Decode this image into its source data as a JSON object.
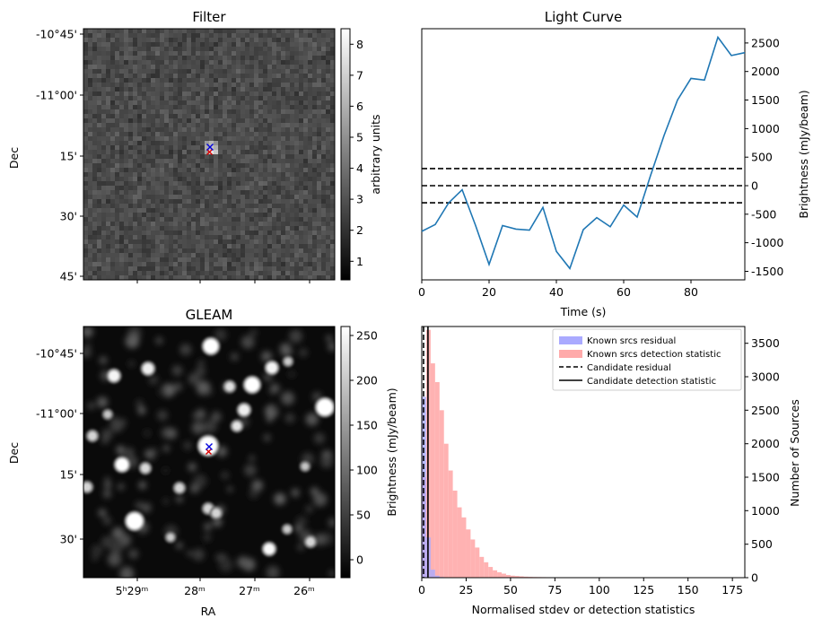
{
  "chart_data": [
    {
      "type": "heatmap",
      "title": "Filter",
      "xlabel": "",
      "ylabel": "Dec",
      "ytick_labels": [
        "-10°45'",
        "-11°00'",
        "15'",
        "30'",
        "45'"
      ],
      "colorbar": {
        "label": "arbitrary units",
        "range": [
          0.4,
          8.5
        ],
        "ticks": [
          1,
          2,
          3,
          4,
          5,
          6,
          7,
          8
        ],
        "colormap": "gray"
      },
      "markers": {
        "blue": "x",
        "red": "x"
      }
    },
    {
      "type": "line",
      "title": "Light Curve",
      "xlabel": "Time (s)",
      "ylabel": "Brightness (mJy/beam)",
      "xlim": [
        0,
        96
      ],
      "ylim": [
        -1650,
        2750
      ],
      "xticks": [
        0,
        20,
        40,
        60,
        80
      ],
      "yticks": [
        -1500,
        -1000,
        -500,
        0,
        500,
        1000,
        1500,
        2000,
        2500
      ],
      "series": [
        {
          "color": "#1f77b4",
          "x": [
            0,
            4,
            8,
            12,
            16,
            20,
            24,
            28,
            32,
            36,
            40,
            44,
            48,
            52,
            56,
            60,
            64,
            68,
            72,
            76,
            80,
            84,
            88,
            92,
            96
          ],
          "y": [
            -800,
            -680,
            -300,
            -70,
            -700,
            -1380,
            -700,
            -760,
            -780,
            -380,
            -1150,
            -1450,
            -770,
            -560,
            -720,
            -340,
            -550,
            180,
            880,
            1500,
            1880,
            1850,
            2600,
            2280,
            2330
          ]
        }
      ],
      "hlines": [
        300,
        0,
        -300
      ]
    },
    {
      "type": "heatmap",
      "title": "GLEAM",
      "xlabel": "RA",
      "ylabel": "Dec",
      "xtick_labels": [
        "5ʰ29ᵐ",
        "28ᵐ",
        "27ᵐ",
        "26ᵐ"
      ],
      "ytick_labels": [
        "-10°45'",
        "-11°00'",
        "15'",
        "30'"
      ],
      "colorbar": {
        "label": "Brightness (mJy/beam)",
        "range": [
          -20,
          260
        ],
        "ticks": [
          0,
          50,
          100,
          150,
          200,
          250
        ],
        "colormap": "gray"
      },
      "markers": {
        "blue": "x",
        "red": "x"
      }
    },
    {
      "type": "bar",
      "title": "",
      "xlabel": "Normalised stdev or detection statistics",
      "ylabel": "Number of Sources",
      "xlim": [
        0,
        182
      ],
      "ylim": [
        0,
        3750
      ],
      "xticks": [
        0,
        25,
        50,
        75,
        100,
        125,
        150,
        175
      ],
      "yticks": [
        0,
        500,
        1000,
        1500,
        2000,
        2500,
        3000,
        3500
      ],
      "legend_position": "top-right",
      "series": [
        {
          "name": "Known srcs residual",
          "color": "#aaaaff",
          "bin_start": 0,
          "bin_width": 2.5,
          "values": [
            2700,
            600,
            120,
            30,
            10,
            5
          ]
        },
        {
          "name": "Known srcs detection statistic",
          "color": "#ffaaaa",
          "bin_start": 0,
          "bin_width": 2.5,
          "values": [
            1500,
            3700,
            3200,
            2920,
            2500,
            2000,
            1600,
            1300,
            1050,
            900,
            720,
            570,
            450,
            310,
            230,
            160,
            110,
            80,
            60,
            40,
            30,
            25,
            20,
            15,
            12,
            10,
            9,
            8,
            7,
            6,
            5,
            5,
            4,
            4,
            3,
            3,
            3,
            2,
            2,
            2,
            2,
            2,
            1,
            1,
            1,
            1,
            1,
            1,
            1,
            1,
            1,
            1,
            1,
            1,
            1,
            1,
            1,
            1,
            1,
            1,
            1,
            1,
            1,
            1,
            1,
            1,
            1,
            1,
            1,
            1
          ]
        }
      ],
      "vlines": [
        {
          "name": "Candidate residual",
          "x": 1.0,
          "style": "dashed"
        },
        {
          "name": "Candidate detection statistic",
          "x": 3.5,
          "style": "solid"
        }
      ]
    }
  ]
}
